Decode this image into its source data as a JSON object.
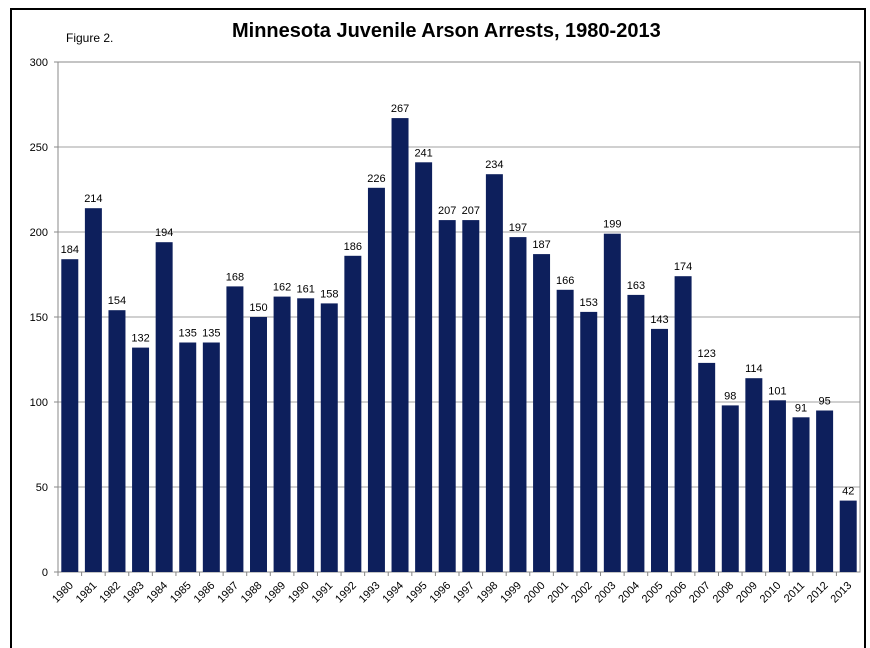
{
  "figure_label": "Figure 2.",
  "chart_data": {
    "type": "bar",
    "title": "Minnesota Juvenile Arson Arrests, 1980-2013",
    "xlabel": "",
    "ylabel": "",
    "ylim": [
      0,
      300
    ],
    "yticks": [
      0,
      50,
      100,
      150,
      200,
      250,
      300
    ],
    "grid": true,
    "bar_color": "#0d1f5c",
    "categories": [
      "1980",
      "1981",
      "1982",
      "1983",
      "1984",
      "1985",
      "1986",
      "1987",
      "1988",
      "1989",
      "1990",
      "1991",
      "1992",
      "1993",
      "1994",
      "1995",
      "1996",
      "1997",
      "1998",
      "1999",
      "2000",
      "2001",
      "2002",
      "2003",
      "2004",
      "2005",
      "2006",
      "2007",
      "2008",
      "2009",
      "2010",
      "2011",
      "2012",
      "2013"
    ],
    "values": [
      184,
      214,
      154,
      132,
      194,
      135,
      135,
      168,
      150,
      162,
      161,
      158,
      186,
      226,
      267,
      241,
      207,
      207,
      234,
      197,
      187,
      166,
      153,
      199,
      163,
      143,
      174,
      123,
      98,
      114,
      101,
      91,
      95,
      42
    ]
  }
}
